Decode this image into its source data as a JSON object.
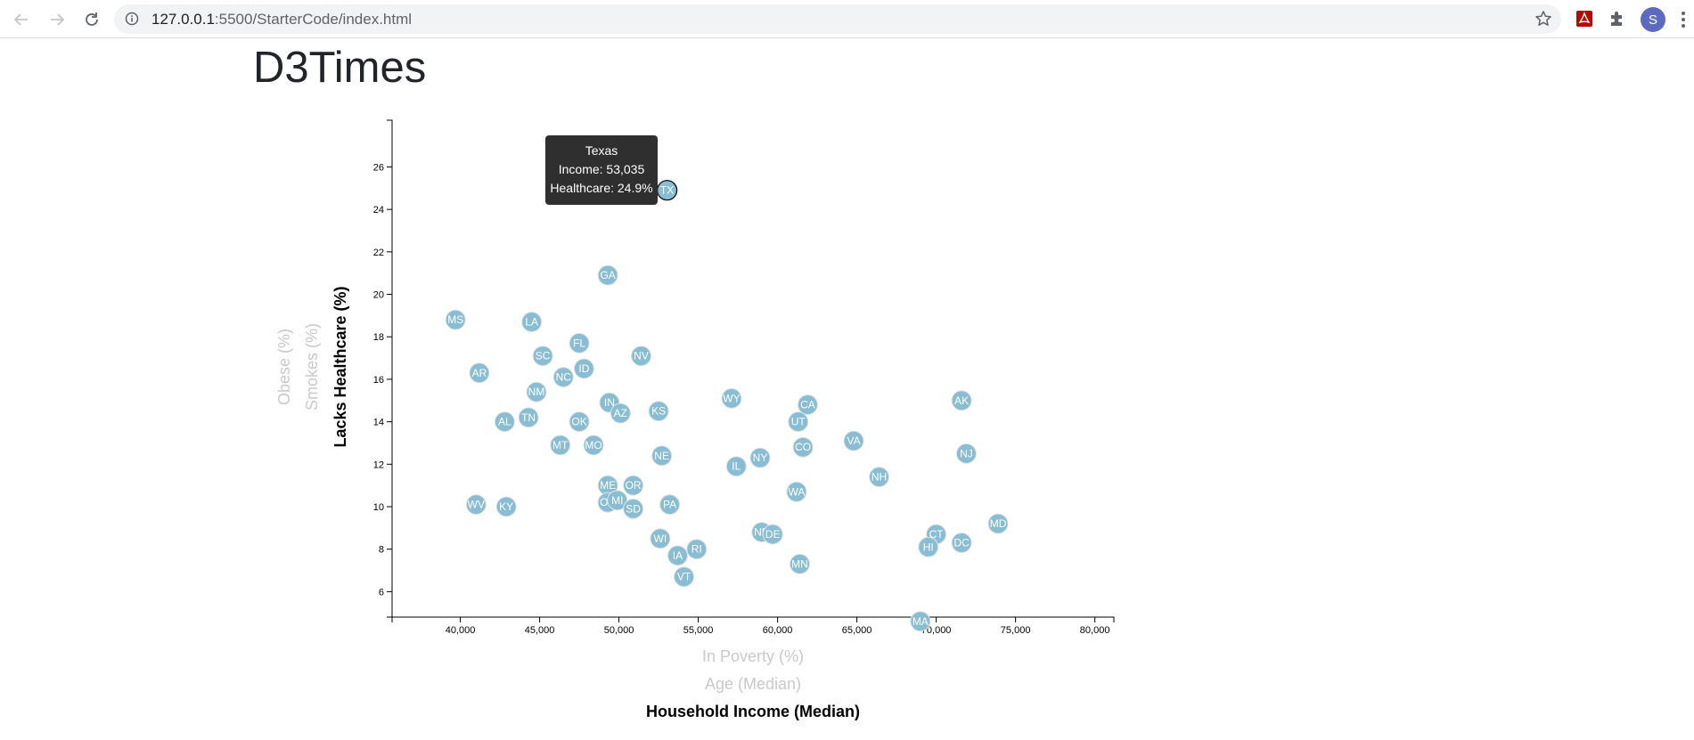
{
  "browser": {
    "url_host": "127.0.0.1",
    "url_path": ":5500/StarterCode/index.html",
    "avatar_letter": "S",
    "icons": [
      "back-arrow-icon",
      "forward-arrow-icon",
      "reload-icon",
      "info-icon",
      "star-icon",
      "pdf-extension-icon",
      "puzzle-icon",
      "menu-dots-icon"
    ]
  },
  "page": {
    "title": "D3Times"
  },
  "tooltip": {
    "state": "Texas",
    "income_line": "Income: 53,035",
    "healthcare_line": "Healthcare: 24.9%"
  },
  "chart_data": {
    "type": "scatter",
    "title": "",
    "xlim": [
      35700,
      81200
    ],
    "ylim": [
      4.8,
      28.2
    ],
    "x_ticks": [
      40000,
      45000,
      50000,
      55000,
      60000,
      65000,
      70000,
      75000,
      80000
    ],
    "x_tick_labels": [
      "40,000",
      "45,000",
      "50,000",
      "55,000",
      "60,000",
      "65,000",
      "70,000",
      "75,000",
      "80,000"
    ],
    "y_ticks": [
      6,
      8,
      10,
      12,
      14,
      16,
      18,
      20,
      22,
      24,
      26
    ],
    "y_tick_labels": [
      "6",
      "8",
      "10",
      "12",
      "14",
      "16",
      "18",
      "20",
      "22",
      "24",
      "26"
    ],
    "x_axis_labels": [
      {
        "text": "In Poverty (%)",
        "active": false
      },
      {
        "text": "Age (Median)",
        "active": false
      },
      {
        "text": "Household Income (Median)",
        "active": true
      }
    ],
    "y_axis_labels": [
      {
        "text": "Lacks Healthcare (%)",
        "active": true
      },
      {
        "text": "Smokes (%)",
        "active": false
      },
      {
        "text": "Obese (%)",
        "active": false
      }
    ],
    "highlighted": "TX",
    "points": [
      {
        "abbr": "TX",
        "x": 53035,
        "y": 24.9
      },
      {
        "abbr": "GA",
        "x": 49300,
        "y": 20.9
      },
      {
        "abbr": "MS",
        "x": 39700,
        "y": 18.8
      },
      {
        "abbr": "LA",
        "x": 44500,
        "y": 18.7
      },
      {
        "abbr": "FL",
        "x": 47500,
        "y": 17.7
      },
      {
        "abbr": "SC",
        "x": 45200,
        "y": 17.1
      },
      {
        "abbr": "NV",
        "x": 51400,
        "y": 17.1
      },
      {
        "abbr": "ID",
        "x": 47800,
        "y": 16.5
      },
      {
        "abbr": "AR",
        "x": 41200,
        "y": 16.3
      },
      {
        "abbr": "NC",
        "x": 46500,
        "y": 16.1
      },
      {
        "abbr": "NM",
        "x": 44800,
        "y": 15.4
      },
      {
        "abbr": "WY",
        "x": 57100,
        "y": 15.1
      },
      {
        "abbr": "AK",
        "x": 71600,
        "y": 15.0
      },
      {
        "abbr": "IN",
        "x": 49400,
        "y": 14.9
      },
      {
        "abbr": "CA",
        "x": 61900,
        "y": 14.8
      },
      {
        "abbr": "KS",
        "x": 52500,
        "y": 14.5
      },
      {
        "abbr": "AZ",
        "x": 50100,
        "y": 14.4
      },
      {
        "abbr": "TN",
        "x": 44300,
        "y": 14.2
      },
      {
        "abbr": "AL",
        "x": 42800,
        "y": 14.0
      },
      {
        "abbr": "OK",
        "x": 47500,
        "y": 14.0
      },
      {
        "abbr": "UT",
        "x": 61300,
        "y": 14.0
      },
      {
        "abbr": "VA",
        "x": 64800,
        "y": 13.1
      },
      {
        "abbr": "MT",
        "x": 46300,
        "y": 12.9
      },
      {
        "abbr": "MO",
        "x": 48400,
        "y": 12.9
      },
      {
        "abbr": "CO",
        "x": 61600,
        "y": 12.8
      },
      {
        "abbr": "NJ",
        "x": 71900,
        "y": 12.5
      },
      {
        "abbr": "NE",
        "x": 52700,
        "y": 12.4
      },
      {
        "abbr": "NY",
        "x": 58900,
        "y": 12.3
      },
      {
        "abbr": "IL",
        "x": 57400,
        "y": 11.9
      },
      {
        "abbr": "NH",
        "x": 66400,
        "y": 11.4
      },
      {
        "abbr": "ME",
        "x": 49300,
        "y": 11.0
      },
      {
        "abbr": "OR",
        "x": 50900,
        "y": 11.0
      },
      {
        "abbr": "WA",
        "x": 61200,
        "y": 10.7
      },
      {
        "abbr": "OH",
        "x": 49300,
        "y": 10.2
      },
      {
        "abbr": "MI",
        "x": 49900,
        "y": 10.3
      },
      {
        "abbr": "PA",
        "x": 53200,
        "y": 10.1
      },
      {
        "abbr": "WV",
        "x": 41000,
        "y": 10.1
      },
      {
        "abbr": "KY",
        "x": 42900,
        "y": 10.0
      },
      {
        "abbr": "SD",
        "x": 50900,
        "y": 9.9
      },
      {
        "abbr": "MD",
        "x": 73900,
        "y": 9.2
      },
      {
        "abbr": "ND",
        "x": 59000,
        "y": 8.8
      },
      {
        "abbr": "DE",
        "x": 59700,
        "y": 8.7
      },
      {
        "abbr": "CT",
        "x": 70000,
        "y": 8.7
      },
      {
        "abbr": "WI",
        "x": 52600,
        "y": 8.5
      },
      {
        "abbr": "DC",
        "x": 71600,
        "y": 8.3
      },
      {
        "abbr": "HI",
        "x": 69500,
        "y": 8.1
      },
      {
        "abbr": "RI",
        "x": 54900,
        "y": 8.0
      },
      {
        "abbr": "IA",
        "x": 53700,
        "y": 7.7
      },
      {
        "abbr": "MN",
        "x": 61400,
        "y": 7.3
      },
      {
        "abbr": "VT",
        "x": 54100,
        "y": 6.7
      },
      {
        "abbr": "MA",
        "x": 69000,
        "y": 4.6
      }
    ]
  }
}
